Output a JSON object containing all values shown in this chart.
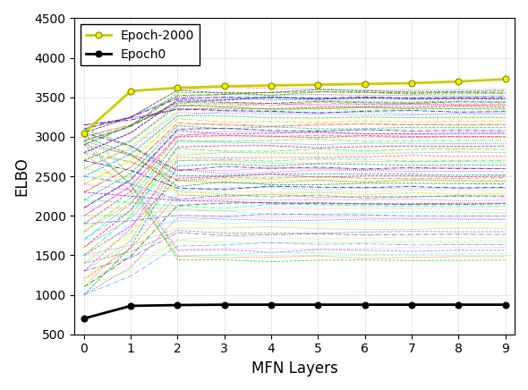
{
  "title": "",
  "xlabel": "MFN Layers",
  "ylabel": "ELBO",
  "xlim": [
    0,
    9
  ],
  "ylim": [
    500,
    4500
  ],
  "xticks": [
    0,
    1,
    2,
    3,
    4,
    5,
    6,
    7,
    8,
    9
  ],
  "yticks": [
    500,
    1000,
    1500,
    2000,
    2500,
    3000,
    3500,
    4000,
    4500
  ],
  "epoch2000_y": [
    3050,
    3580,
    3620,
    3640,
    3650,
    3660,
    3670,
    3680,
    3700,
    3730
  ],
  "epoch0_y": [
    700,
    860,
    870,
    875,
    875,
    875,
    875,
    875,
    875,
    875
  ],
  "n_random_lines": 80,
  "random_seed": 42,
  "background_color": "#ffffff",
  "grid_color": "#888888",
  "legend_entries": [
    "Epoch-2000",
    "Epoch0"
  ],
  "figsize": [
    5.9,
    4.36
  ],
  "dpi": 100,
  "random_line_colors": [
    "#FF0000",
    "#00CC00",
    "#0000FF",
    "#FF00FF",
    "#00CCCC",
    "#FF8800",
    "#8800FF",
    "#FF0088",
    "#88FF00",
    "#0088FF",
    "#FFFF00",
    "#FF4444",
    "#44FF44",
    "#4444FF",
    "#FF44FF",
    "#44FFFF",
    "#FFAA00",
    "#00FFAA",
    "#AA00FF",
    "#FF00AA",
    "#AAFF00",
    "#00AAFF",
    "#FF6600",
    "#006600",
    "#660066",
    "#006666",
    "#666600",
    "#660000",
    "#000066",
    "#336633",
    "#CC0000",
    "#00CC00",
    "#0000CC",
    "#CC00CC",
    "#00CCCC",
    "#CCCC00",
    "#CC6600",
    "#00CC66",
    "#6600CC",
    "#CC0066",
    "#FF3300",
    "#33FF00",
    "#0033FF",
    "#FF0033",
    "#00FF33",
    "#33FFFF",
    "#FF33FF",
    "#FFFF33",
    "#996600",
    "#009966",
    "#660099",
    "#990066",
    "#009999",
    "#999900",
    "#990000",
    "#009900",
    "#000099",
    "#FF9900",
    "#99FF00",
    "#0099FF",
    "#FF0099",
    "#9900FF",
    "#00FF99",
    "#FF6666",
    "#66FF66",
    "#6666FF",
    "#FF66FF",
    "#66FFFF",
    "#FFFF66",
    "#996666",
    "#669966",
    "#666699",
    "#FF9966",
    "#99FF66",
    "#6699FF",
    "#FF6699",
    "#9966FF",
    "#66FF99",
    "#CC3300",
    "#33CC00"
  ],
  "random_start_values_layer0": [
    3050,
    2900,
    3100,
    2800,
    2950,
    3000,
    2700,
    3150,
    2600,
    2500,
    2400,
    2300,
    2200,
    2100,
    2000,
    1900,
    1800,
    1700,
    1600,
    1500,
    1400,
    1300,
    1200,
    1100,
    1000,
    3050,
    2900,
    3100,
    2800,
    2950,
    3000,
    2700,
    3150,
    2600,
    2500,
    2400,
    2300,
    2200,
    2100,
    2000,
    1900,
    1800,
    1700,
    1600,
    1500,
    1400,
    1300,
    1200,
    1100,
    1000,
    3050,
    2900,
    3100,
    2800,
    2950,
    3000,
    2700,
    3150,
    2600,
    2500,
    2400,
    2300,
    2200,
    2100,
    2000,
    1900,
    1800,
    1700,
    1600,
    1500,
    1400,
    1300,
    1200,
    1100,
    1000,
    3050,
    2900,
    3100,
    2800,
    2950
  ],
  "random_end_values_layer9": [
    3600,
    3550,
    3500,
    3480,
    3450,
    3420,
    3400,
    3380,
    3350,
    3300,
    3250,
    3150,
    3100,
    3050,
    3000,
    2900,
    2800,
    2700,
    2600,
    2500,
    2450,
    2350,
    2250,
    2150,
    1950,
    3580,
    3560,
    3520,
    3480,
    3440,
    3400,
    3360,
    3320,
    3280,
    3240,
    3200,
    3160,
    3120,
    3080,
    3040,
    3000,
    2960,
    2920,
    2880,
    2840,
    2800,
    2760,
    2720,
    2680,
    2640,
    2600,
    2560,
    2520,
    2480,
    2440,
    2400,
    2360,
    2320,
    2280,
    2240,
    2200,
    2160,
    2120,
    2080,
    2040,
    2000,
    1960,
    1920,
    1880,
    1840,
    1800,
    1760,
    1720,
    1680,
    1640,
    1600,
    1560,
    1520,
    1480,
    1440
  ]
}
